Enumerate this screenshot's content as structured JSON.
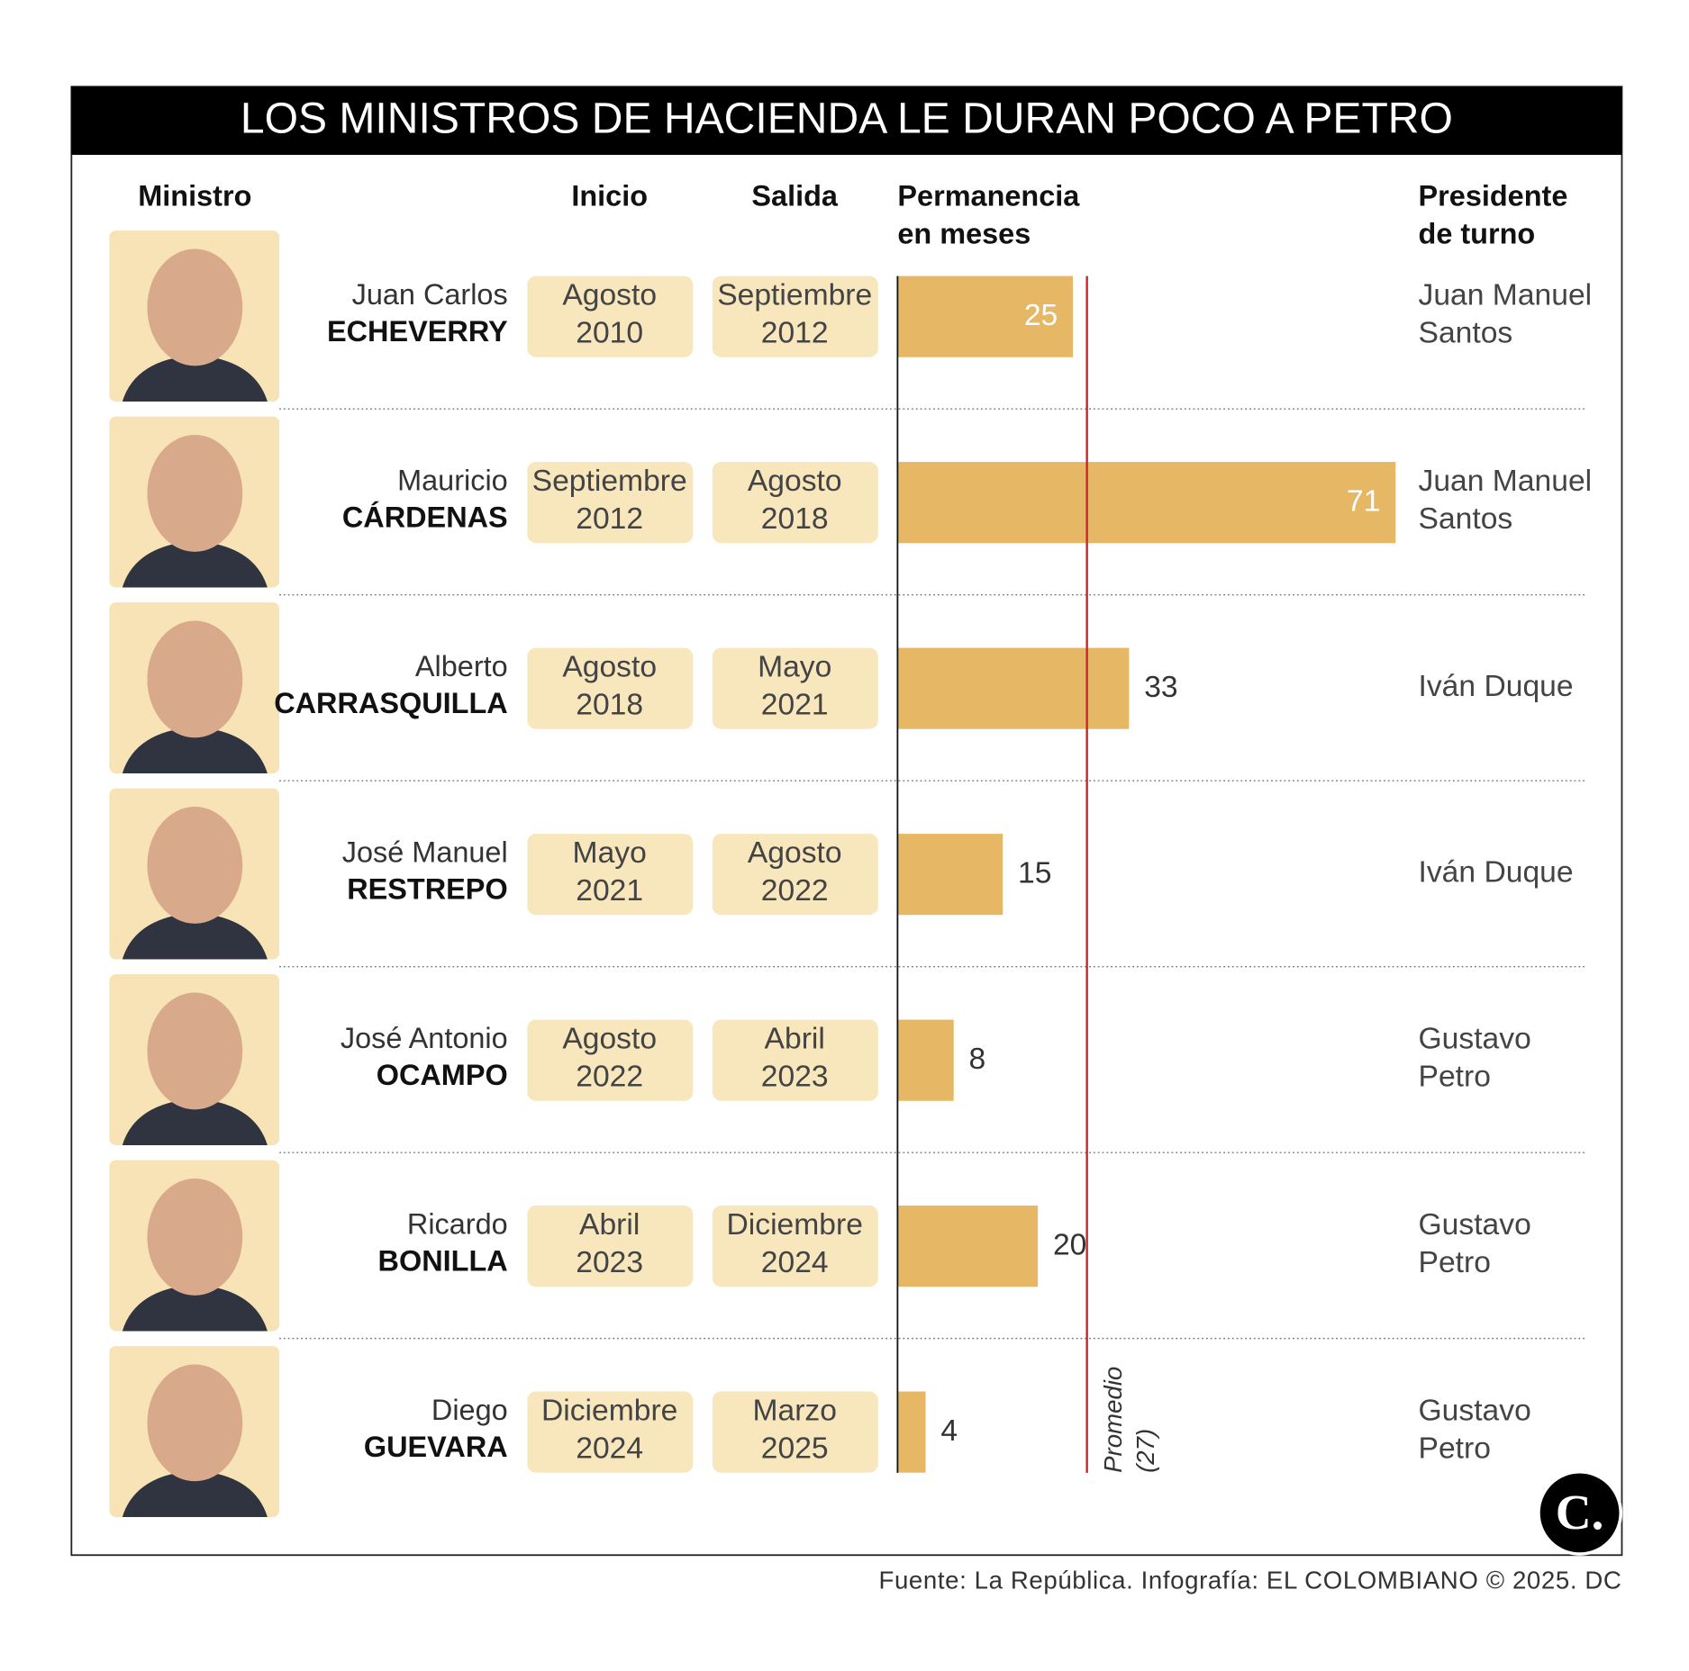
{
  "chart_data": {
    "type": "bar",
    "title": "LOS MINISTROS DE HACIENDA LE DURAN POCO A PETRO",
    "headers": {
      "minister": "Ministro",
      "start": "Inicio",
      "end": "Salida",
      "duration": [
        "Permanencia",
        "en meses"
      ],
      "president": [
        "Presidente",
        "de turno"
      ]
    },
    "rows": [
      {
        "first": "Juan Carlos",
        "last": "ECHEVERRY",
        "start": [
          "Agosto",
          "2010"
        ],
        "end": [
          "Septiembre",
          "2012"
        ],
        "president": [
          "Juan Manuel",
          "Santos"
        ]
      },
      {
        "first": "Mauricio",
        "last": "CÁRDENAS",
        "start": [
          "Septiembre",
          "2012"
        ],
        "end": [
          "Agosto",
          "2018"
        ],
        "president": [
          "Juan Manuel",
          "Santos"
        ]
      },
      {
        "first": "Alberto",
        "last": "CARRASQUILLA",
        "start": [
          "Agosto",
          "2018"
        ],
        "end": [
          "Mayo",
          "2021"
        ],
        "president": [
          "Iván Duque"
        ]
      },
      {
        "first": "José Manuel",
        "last": "RESTREPO",
        "start": [
          "Mayo",
          "2021"
        ],
        "end": [
          "Agosto",
          "2022"
        ],
        "president": [
          "Iván Duque"
        ]
      },
      {
        "first": "José Antonio",
        "last": "OCAMPO",
        "start": [
          "Agosto",
          "2022"
        ],
        "end": [
          "Abril",
          "2023"
        ],
        "president": [
          "Gustavo",
          "Petro"
        ]
      },
      {
        "first": "Ricardo",
        "last": "BONILLA",
        "start": [
          "Abril",
          "2023"
        ],
        "end": [
          "Diciembre",
          "2024"
        ],
        "president": [
          "Gustavo",
          "Petro"
        ]
      },
      {
        "first": "Diego",
        "last": "GUEVARA",
        "start": [
          "Diciembre",
          "2024"
        ],
        "end": [
          "Marzo",
          "2025"
        ],
        "president": [
          "Gustavo",
          "Petro"
        ]
      }
    ],
    "values": [
      25,
      71,
      33,
      15,
      8,
      20,
      4
    ],
    "color": "#e6b865",
    "xlim": [
      0,
      71
    ],
    "average": {
      "label": "Promedio",
      "value": 27,
      "value_label": "(27)",
      "color": "#c8282d"
    },
    "source": "Fuente: La República. Infografía: EL COLOMBIANO © 2025. DC",
    "logo": "C."
  }
}
